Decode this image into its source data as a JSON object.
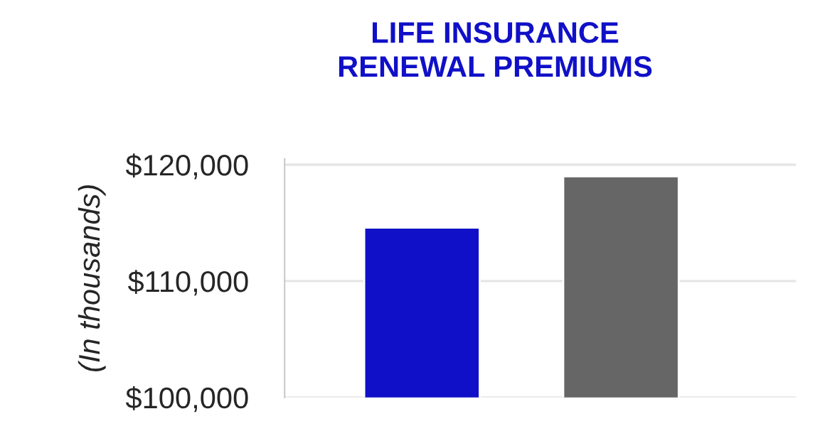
{
  "chart_data": {
    "type": "bar",
    "title": "LIFE INSURANCE\nRENEWAL PREMIUMS",
    "ylabel": "(In thousands)",
    "categories": [
      null,
      null
    ],
    "values": [
      114600,
      119000
    ],
    "colors": [
      "#1010c8",
      "#666666"
    ],
    "ylim": [
      100000,
      120500
    ],
    "yticks": [
      {
        "value": 100000,
        "label": "$100,000"
      },
      {
        "value": 110000,
        "label": "$110,000"
      },
      {
        "value": 120000,
        "label": "$120,000"
      }
    ],
    "grid": "y"
  }
}
